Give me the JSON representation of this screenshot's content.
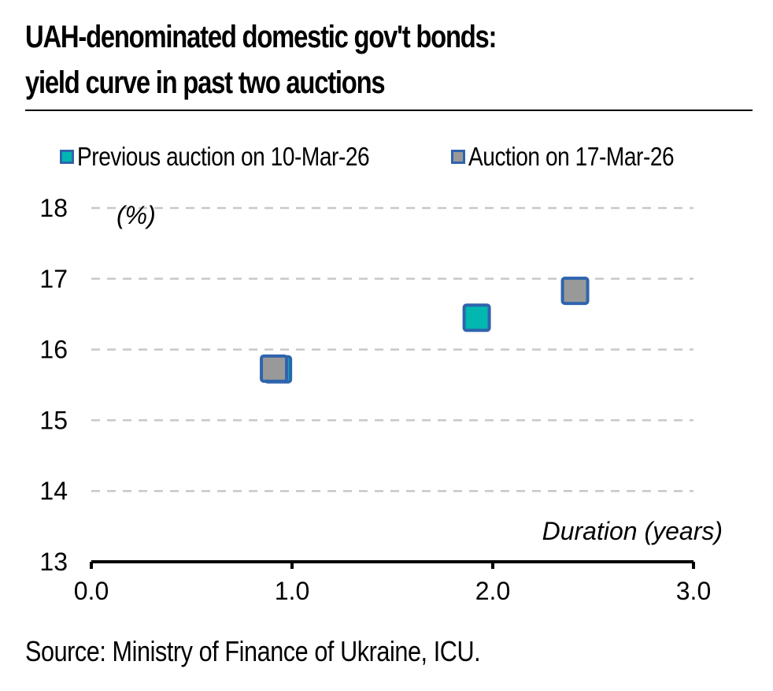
{
  "header": {
    "title_line1": "UAH-denominated domestic gov't bonds:",
    "title_line2": "yield curve in past two auctions"
  },
  "legend": [
    {
      "label": "Previous auction on 10-Mar-26",
      "fill": "#00b8b0",
      "border": "#2f64ad"
    },
    {
      "label": "Auction on 17-Mar-26",
      "fill": "#999999",
      "border": "#2f64ad"
    }
  ],
  "footer": {
    "source": "Source: Ministry of Finance of Ukraine, ICU."
  },
  "chart_data": {
    "type": "scatter",
    "title": "UAH-denominated domestic gov't bonds: yield curve in past two auctions",
    "xlabel": "Duration (years)",
    "ylabel": "(%)",
    "xlim": [
      0,
      3
    ],
    "ylim": [
      13,
      18
    ],
    "xticks": [
      "0.0",
      "1.0",
      "2.0",
      "3.0"
    ],
    "yticks": [
      "13",
      "14",
      "15",
      "16",
      "17",
      "18"
    ],
    "grid": "horizontal-dashed",
    "legend_position": "top",
    "series": [
      {
        "name": "Previous auction on 10-Mar-26",
        "color": "#00b8b0",
        "border": "#2f64ad",
        "points": [
          {
            "x": 0.93,
            "y": 15.72
          },
          {
            "x": 1.92,
            "y": 16.45
          }
        ]
      },
      {
        "name": "Auction on 17-Mar-26",
        "color": "#999999",
        "border": "#2f64ad",
        "points": [
          {
            "x": 0.91,
            "y": 15.73
          },
          {
            "x": 2.41,
            "y": 16.83
          }
        ]
      }
    ]
  }
}
